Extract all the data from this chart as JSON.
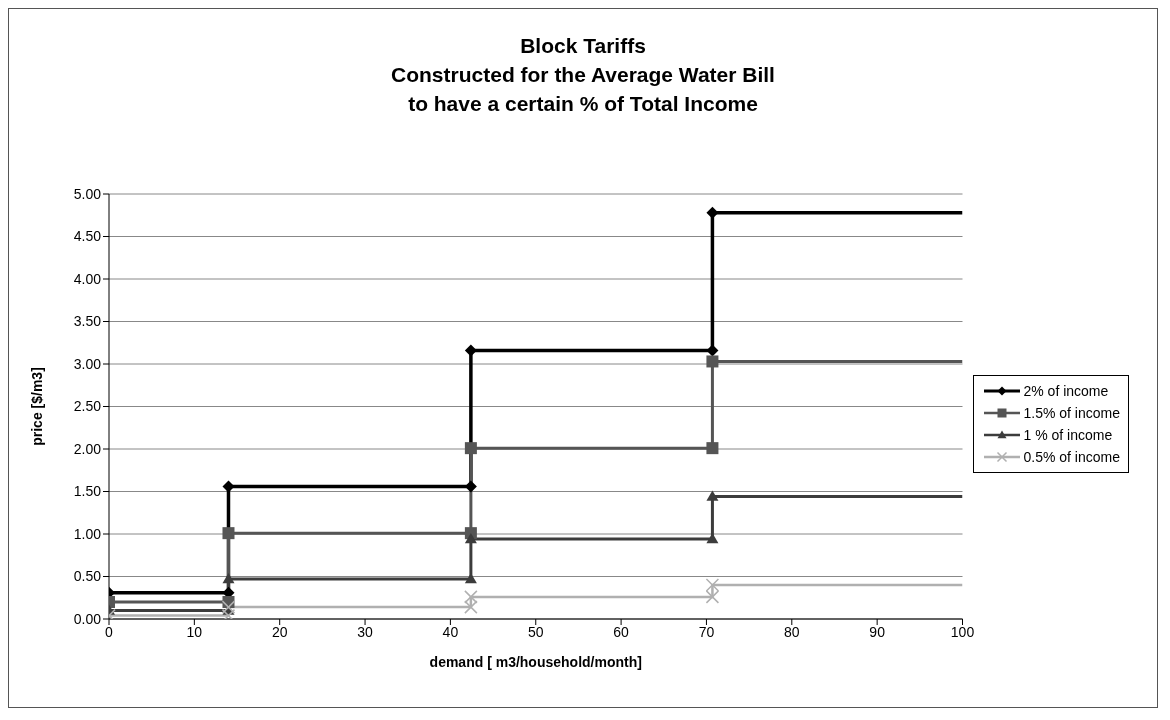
{
  "chart_data": {
    "type": "line",
    "title": "Block Tariffs\nConstructed for the Average Water Bill\nto have a certain % of Total Income",
    "xlabel": "demand [ m3/household/month]",
    "ylabel": "price [$/m3]",
    "series": [
      {
        "name": "2% of income",
        "color": "#000000",
        "marker": "diamond",
        "x": [
          0,
          14,
          14,
          42.4,
          42.4,
          70.7,
          70.7,
          100
        ],
        "values": [
          0.31,
          0.31,
          1.56,
          1.56,
          3.16,
          3.16,
          4.78,
          4.78
        ]
      },
      {
        "name": "1.5% of income",
        "color": "#555555",
        "marker": "square",
        "x": [
          0,
          14,
          14,
          42.4,
          42.4,
          70.7,
          70.7,
          100
        ],
        "values": [
          0.2,
          0.2,
          1.01,
          1.01,
          2.01,
          2.01,
          3.03,
          3.03
        ]
      },
      {
        "name": "1 % of income",
        "color": "#3c3c3c",
        "marker": "triangle",
        "x": [
          0,
          14,
          14,
          42.4,
          42.4,
          70.7,
          70.7,
          100
        ],
        "values": [
          0.1,
          0.1,
          0.47,
          0.47,
          0.94,
          0.94,
          1.44,
          1.44
        ]
      },
      {
        "name": "0.5% of income",
        "color": "#b0b0b0",
        "marker": "cross",
        "x": [
          0,
          14,
          14,
          42.4,
          42.4,
          70.7,
          70.7,
          100
        ],
        "values": [
          0.04,
          0.04,
          0.14,
          0.14,
          0.26,
          0.26,
          0.4,
          0.4
        ]
      }
    ],
    "xlim": [
      0,
      100
    ],
    "xticks": [
      0,
      10,
      20,
      30,
      40,
      50,
      60,
      70,
      80,
      90,
      100
    ],
    "ylim": [
      0,
      5
    ],
    "yticks": [
      {
        "value": 0,
        "label": "0.00"
      },
      {
        "value": 0.5,
        "label": "0.50"
      },
      {
        "value": 1,
        "label": "1.00"
      },
      {
        "value": 1.5,
        "label": "1.50"
      },
      {
        "value": 2,
        "label": "2.00"
      },
      {
        "value": 2.5,
        "label": "2.50"
      },
      {
        "value": 3,
        "label": "3.00"
      },
      {
        "value": 3.5,
        "label": "3.50"
      },
      {
        "value": 4,
        "label": "4.00"
      },
      {
        "value": 4.5,
        "label": "4.50"
      },
      {
        "value": 5,
        "label": "5.00"
      }
    ],
    "grid": "y",
    "legend": "right",
    "line_style": "solid"
  }
}
